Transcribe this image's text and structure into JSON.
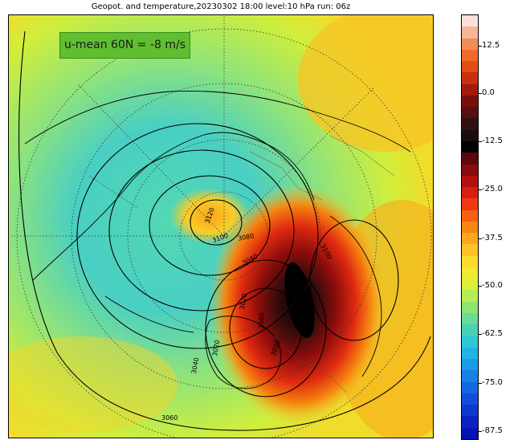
{
  "title": "Geopot. and temperature,20230302 18:00 level:10 hPa run: 06z",
  "annotation": "u-mean 60N = -8 m/s",
  "colorbar": {
    "ticks": [
      "12.5",
      "0.0",
      "-12.5",
      "-25.0",
      "-37.5",
      "-50.0",
      "-62.5",
      "-75.0",
      "-87.5"
    ],
    "colors": [
      "#fde0dc",
      "#f8b59a",
      "#f48c5a",
      "#ef6a2a",
      "#e24d12",
      "#c63010",
      "#a21a0e",
      "#7a0f0a",
      "#551010",
      "#331010",
      "#1a0d0d",
      "#000000",
      "#5c0808",
      "#8a0b0b",
      "#b40f0f",
      "#d81e0e",
      "#ef3a10",
      "#f6600f",
      "#f98514",
      "#fba61c",
      "#fdc325",
      "#fbdc2d",
      "#f2ea2f",
      "#d9ef3a",
      "#b6ec55",
      "#8ee573",
      "#68dc94",
      "#48d2b5",
      "#2fc7d2",
      "#21b4e6",
      "#1b9be8",
      "#1781e6",
      "#1467e2",
      "#114edb",
      "#0e37d2",
      "#0a22c4",
      "#0712b2"
    ]
  },
  "contour_labels": [
    "3120",
    "3100",
    "3080",
    "3040",
    "3020",
    "3000",
    "2980",
    "3100",
    "3040",
    "3020",
    "3060"
  ]
}
